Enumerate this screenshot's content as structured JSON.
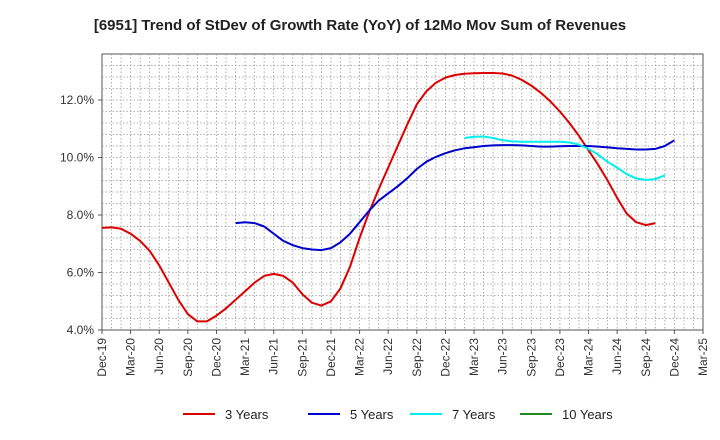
{
  "chart_data": {
    "type": "line",
    "title": "[6951]  Trend of StDev of Growth Rate (YoY) of 12Mo Mov Sum of Revenues",
    "xlabel": "",
    "ylabel": "",
    "ylim": [
      4.0,
      13.6
    ],
    "yticks": [
      4.0,
      6.0,
      8.0,
      10.0,
      12.0
    ],
    "ytick_labels": [
      "4.0%",
      "6.0%",
      "8.0%",
      "10.0%",
      "12.0%"
    ],
    "xtick_labels": [
      "Dec-19",
      "Mar-20",
      "Jun-20",
      "Sep-20",
      "Dec-20",
      "Mar-21",
      "Jun-21",
      "Sep-21",
      "Dec-21",
      "Mar-22",
      "Jun-22",
      "Sep-22",
      "Dec-22",
      "Mar-23",
      "Jun-23",
      "Sep-23",
      "Dec-23",
      "Mar-24",
      "Jun-24",
      "Sep-24",
      "Dec-24",
      "Mar-25"
    ],
    "x_start": "Dec-19",
    "num_months": 63,
    "legend_position": "bottom",
    "series": [
      {
        "name": "3 Years",
        "color": "#dd0000",
        "start_index": 0,
        "values": [
          7.55,
          7.57,
          7.52,
          7.35,
          7.1,
          6.75,
          6.25,
          5.65,
          5.05,
          4.55,
          4.3,
          4.3,
          4.5,
          4.75,
          5.05,
          5.35,
          5.65,
          5.88,
          5.95,
          5.88,
          5.65,
          5.25,
          4.95,
          4.85,
          5.0,
          5.45,
          6.2,
          7.2,
          8.1,
          8.9,
          9.65,
          10.4,
          11.15,
          11.85,
          12.3,
          12.6,
          12.78,
          12.87,
          12.91,
          12.93,
          12.94,
          12.94,
          12.92,
          12.85,
          12.7,
          12.5,
          12.25,
          11.95,
          11.6,
          11.2,
          10.75,
          10.25,
          9.75,
          9.2,
          8.6,
          8.05,
          7.75,
          7.65,
          7.72
        ]
      },
      {
        "name": "5 Years",
        "color": "#0000cc",
        "start_index": 14,
        "values": [
          7.72,
          7.75,
          7.72,
          7.6,
          7.35,
          7.1,
          6.95,
          6.85,
          6.8,
          6.78,
          6.85,
          7.05,
          7.35,
          7.75,
          8.15,
          8.5,
          8.75,
          9.0,
          9.28,
          9.6,
          9.85,
          10.02,
          10.15,
          10.25,
          10.32,
          10.36,
          10.4,
          10.42,
          10.43,
          10.43,
          10.42,
          10.4,
          10.38,
          10.38,
          10.39,
          10.4,
          10.4,
          10.4,
          10.38,
          10.35,
          10.32,
          10.3,
          10.28,
          10.28,
          10.3,
          10.4,
          10.6
        ]
      },
      {
        "name": "7 Years",
        "color": "#00eeee",
        "start_index": 38,
        "values": [
          10.68,
          10.72,
          10.73,
          10.68,
          10.6,
          10.56,
          10.55,
          10.55,
          10.55,
          10.55,
          10.55,
          10.52,
          10.45,
          10.3,
          10.1,
          9.85,
          9.65,
          9.42,
          9.27,
          9.22,
          9.25,
          9.38
        ]
      },
      {
        "name": "10 Years",
        "color": "#228822",
        "start_index": 0,
        "values": []
      }
    ]
  }
}
